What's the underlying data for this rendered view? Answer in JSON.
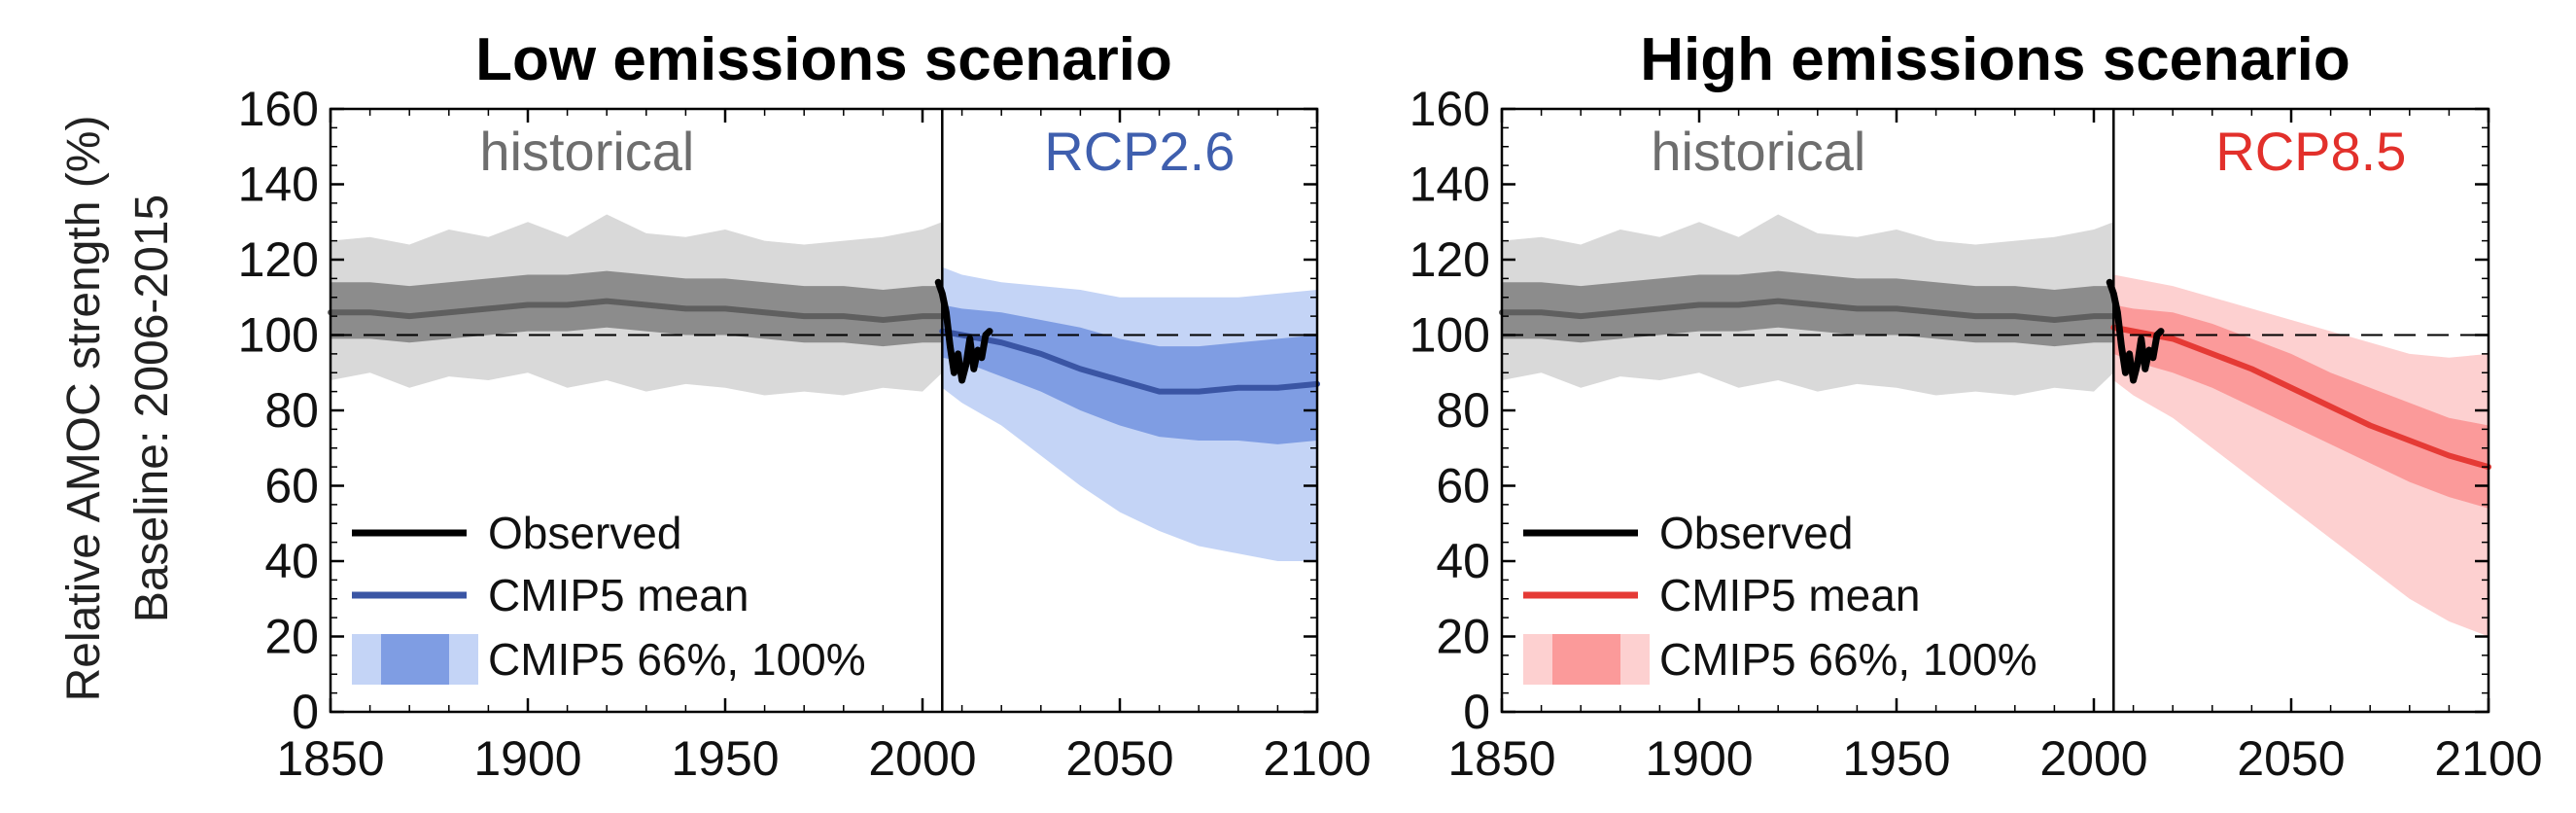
{
  "ylabel_line1": "Relative AMOC strength (%)",
  "ylabel_line2": "Baseline: 2006-2015",
  "chart_data": [
    {
      "type": "line",
      "title": "Low emissions scenario",
      "xlim": [
        1850,
        2100
      ],
      "ylim": [
        0,
        160
      ],
      "xticks": [
        1850,
        1900,
        1950,
        2000,
        2050,
        2100
      ],
      "yticks": [
        0,
        20,
        40,
        60,
        80,
        100,
        120,
        140,
        160
      ],
      "baseline": 100,
      "divider_year": 2005,
      "period_labels": [
        {
          "text": "historical",
          "color": "#6e6e6e"
        },
        {
          "text": "RCP2.6",
          "color": "#3f5fae"
        }
      ],
      "colors": {
        "mean": "#3a55a4",
        "band66": "#7f9de3",
        "band100": "#c4d4f6"
      },
      "legend": {
        "placement": "bottom-left",
        "entries": [
          "Observed",
          "CMIP5 mean",
          "CMIP5 66%, 100%"
        ]
      },
      "historical": {
        "x": [
          1850,
          1860,
          1870,
          1880,
          1890,
          1900,
          1910,
          1920,
          1930,
          1940,
          1950,
          1960,
          1970,
          1980,
          1990,
          2000,
          2005
        ],
        "mean": [
          106,
          106,
          105,
          106,
          107,
          108,
          108,
          109,
          108,
          107,
          107,
          106,
          105,
          105,
          104,
          105,
          105
        ],
        "p66_low": [
          99,
          99,
          98,
          99,
          100,
          101,
          101,
          102,
          101,
          100,
          100,
          99,
          98,
          98,
          97,
          98,
          98
        ],
        "p66_high": [
          114,
          114,
          113,
          114,
          115,
          116,
          116,
          117,
          116,
          115,
          115,
          114,
          113,
          113,
          112,
          113,
          113
        ],
        "p100_low": [
          88,
          90,
          86,
          89,
          88,
          90,
          86,
          88,
          85,
          87,
          86,
          84,
          85,
          84,
          86,
          85,
          90
        ],
        "p100_high": [
          125,
          126,
          124,
          128,
          126,
          130,
          126,
          132,
          127,
          126,
          128,
          125,
          124,
          125,
          126,
          128,
          130
        ]
      },
      "projection": {
        "x": [
          2005,
          2010,
          2020,
          2030,
          2040,
          2050,
          2060,
          2070,
          2080,
          2090,
          2100
        ],
        "mean": [
          101,
          100,
          98,
          95,
          91,
          88,
          85,
          85,
          86,
          86,
          87
        ],
        "p66_low": [
          94,
          93,
          89,
          85,
          80,
          76,
          73,
          72,
          72,
          71,
          72
        ],
        "p66_high": [
          108,
          107,
          106,
          104,
          102,
          99,
          97,
          97,
          98,
          99,
          100
        ],
        "p100_low": [
          86,
          82,
          76,
          68,
          60,
          53,
          48,
          44,
          42,
          40,
          40
        ],
        "p100_high": [
          118,
          116,
          114,
          113,
          112,
          110,
          110,
          110,
          110,
          111,
          112
        ]
      },
      "observed": {
        "x": [
          2004,
          2005,
          2006,
          2007,
          2008,
          2009,
          2010,
          2011,
          2012,
          2013,
          2014,
          2015,
          2016,
          2017
        ],
        "y": [
          114,
          111,
          106,
          97,
          90,
          95,
          88,
          92,
          99,
          91,
          96,
          94,
          100,
          101
        ]
      }
    },
    {
      "type": "line",
      "title": "High emissions scenario",
      "xlim": [
        1850,
        2100
      ],
      "ylim": [
        0,
        160
      ],
      "xticks": [
        1850,
        1900,
        1950,
        2000,
        2050,
        2100
      ],
      "yticks": [
        0,
        20,
        40,
        60,
        80,
        100,
        120,
        140,
        160
      ],
      "baseline": 100,
      "divider_year": 2005,
      "period_labels": [
        {
          "text": "historical",
          "color": "#6e6e6e"
        },
        {
          "text": "RCP8.5",
          "color": "#e2302b"
        }
      ],
      "colors": {
        "mean": "#e53a35",
        "band66": "#fb9a9a",
        "band100": "#fdd0d0"
      },
      "legend": {
        "placement": "bottom-left",
        "entries": [
          "Observed",
          "CMIP5 mean",
          "CMIP5 66%, 100%"
        ]
      },
      "historical": {
        "x": [
          1850,
          1860,
          1870,
          1880,
          1890,
          1900,
          1910,
          1920,
          1930,
          1940,
          1950,
          1960,
          1970,
          1980,
          1990,
          2000,
          2005
        ],
        "mean": [
          106,
          106,
          105,
          106,
          107,
          108,
          108,
          109,
          108,
          107,
          107,
          106,
          105,
          105,
          104,
          105,
          105
        ],
        "p66_low": [
          99,
          99,
          98,
          99,
          100,
          101,
          101,
          102,
          101,
          100,
          100,
          99,
          98,
          98,
          97,
          98,
          98
        ],
        "p66_high": [
          114,
          114,
          113,
          114,
          115,
          116,
          116,
          117,
          116,
          115,
          115,
          114,
          113,
          113,
          112,
          113,
          113
        ],
        "p100_low": [
          88,
          90,
          86,
          89,
          88,
          90,
          86,
          88,
          85,
          87,
          86,
          84,
          85,
          84,
          86,
          85,
          90
        ],
        "p100_high": [
          125,
          126,
          124,
          128,
          126,
          130,
          126,
          132,
          127,
          126,
          128,
          125,
          124,
          125,
          126,
          128,
          130
        ]
      },
      "projection": {
        "x": [
          2005,
          2010,
          2020,
          2030,
          2040,
          2050,
          2060,
          2070,
          2080,
          2090,
          2100
        ],
        "mean": [
          102,
          101,
          99,
          95,
          91,
          86,
          81,
          76,
          72,
          68,
          65
        ],
        "p66_low": [
          95,
          93,
          90,
          86,
          81,
          76,
          71,
          66,
          61,
          57,
          54
        ],
        "p66_high": [
          108,
          107,
          106,
          103,
          99,
          95,
          90,
          86,
          82,
          78,
          76
        ],
        "p100_low": [
          88,
          84,
          78,
          70,
          62,
          54,
          46,
          38,
          30,
          24,
          20
        ],
        "p100_high": [
          116,
          115,
          113,
          110,
          107,
          104,
          101,
          98,
          95,
          94,
          95
        ]
      },
      "observed": {
        "x": [
          2004,
          2005,
          2006,
          2007,
          2008,
          2009,
          2010,
          2011,
          2012,
          2013,
          2014,
          2015,
          2016,
          2017
        ],
        "y": [
          114,
          111,
          106,
          97,
          90,
          95,
          88,
          92,
          99,
          91,
          96,
          94,
          100,
          101
        ]
      }
    }
  ]
}
